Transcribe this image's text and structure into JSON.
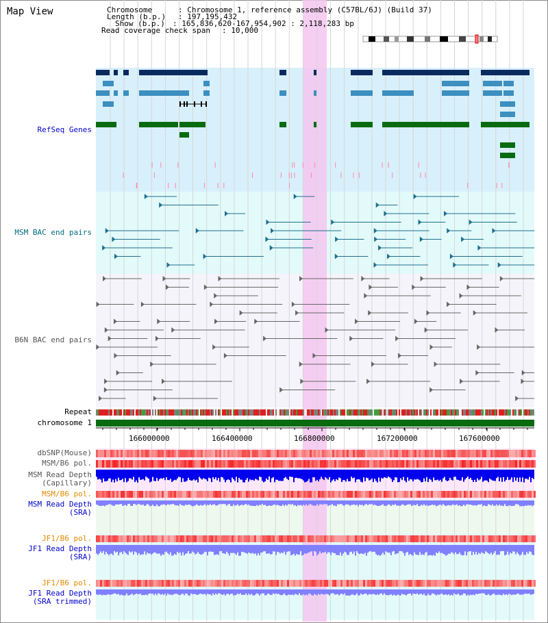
{
  "header": {
    "title": "Map View",
    "chromosome_key": "Chromosome",
    "chromosome_value": "Chromosome 1, reference assembly (C57BL/6J) (Build 37)",
    "length_key": "Length (b.p.)",
    "length_value": "197,195,432",
    "show_key": "Show (b.p.)",
    "show_value": "165,836,620-167,954,902 : 2,118,283 bp",
    "coverage_key": "Read coverage check span",
    "coverage_value": "10,000"
  },
  "tracks": {
    "refseq": "RefSeq Genes",
    "msm_bac": "MSM BAC end pairs",
    "b6n_bac": "B6N BAC end pairs",
    "repeat": "Repeat",
    "chromosome": "chromosome 1",
    "dbsnp": "dbSNP(Mouse)",
    "msm_b6_pol_1": "MSM/B6 pol.",
    "msm_read_depth_cap_1": "MSM Read Depth",
    "msm_read_depth_cap_2": "(Capillary)",
    "msm_b6_pol_2": "MSM/B6 pol.",
    "msm_read_depth_sra_1": "MSM Read Depth",
    "msm_read_depth_sra_2": "(SRA)",
    "jf1_b6_pol_1": "JF1/B6 pol.",
    "jf1_read_depth_sra_1": "JF1 Read Depth",
    "jf1_read_depth_sra_2": "(SRA)",
    "jf1_b6_pol_2": "JF1/B6 pol.",
    "jf1_read_depth_trim_1": "JF1 Read Depth",
    "jf1_read_depth_trim_2": "(SRA trimmed)"
  },
  "axis": {
    "ticks": [
      "166000000",
      "166400000",
      "166800000",
      "167200000",
      "167600000"
    ]
  },
  "colors": {
    "refseq_bg": "#d8f0fb",
    "msm_bg": "#e2fafa",
    "b6n_bg": "#f4f4fa",
    "highlight": "#f5c6f0",
    "gene_dark": "#0a2a5e",
    "gene_mid": "#3c8fbf",
    "gene_green": "#086b10",
    "msm_pair": "#1f6f8f",
    "b6n_pair": "#666666",
    "chromosome": "#086b10",
    "depth_blue": "#0000ee",
    "depth_light": "#8080ff"
  }
}
